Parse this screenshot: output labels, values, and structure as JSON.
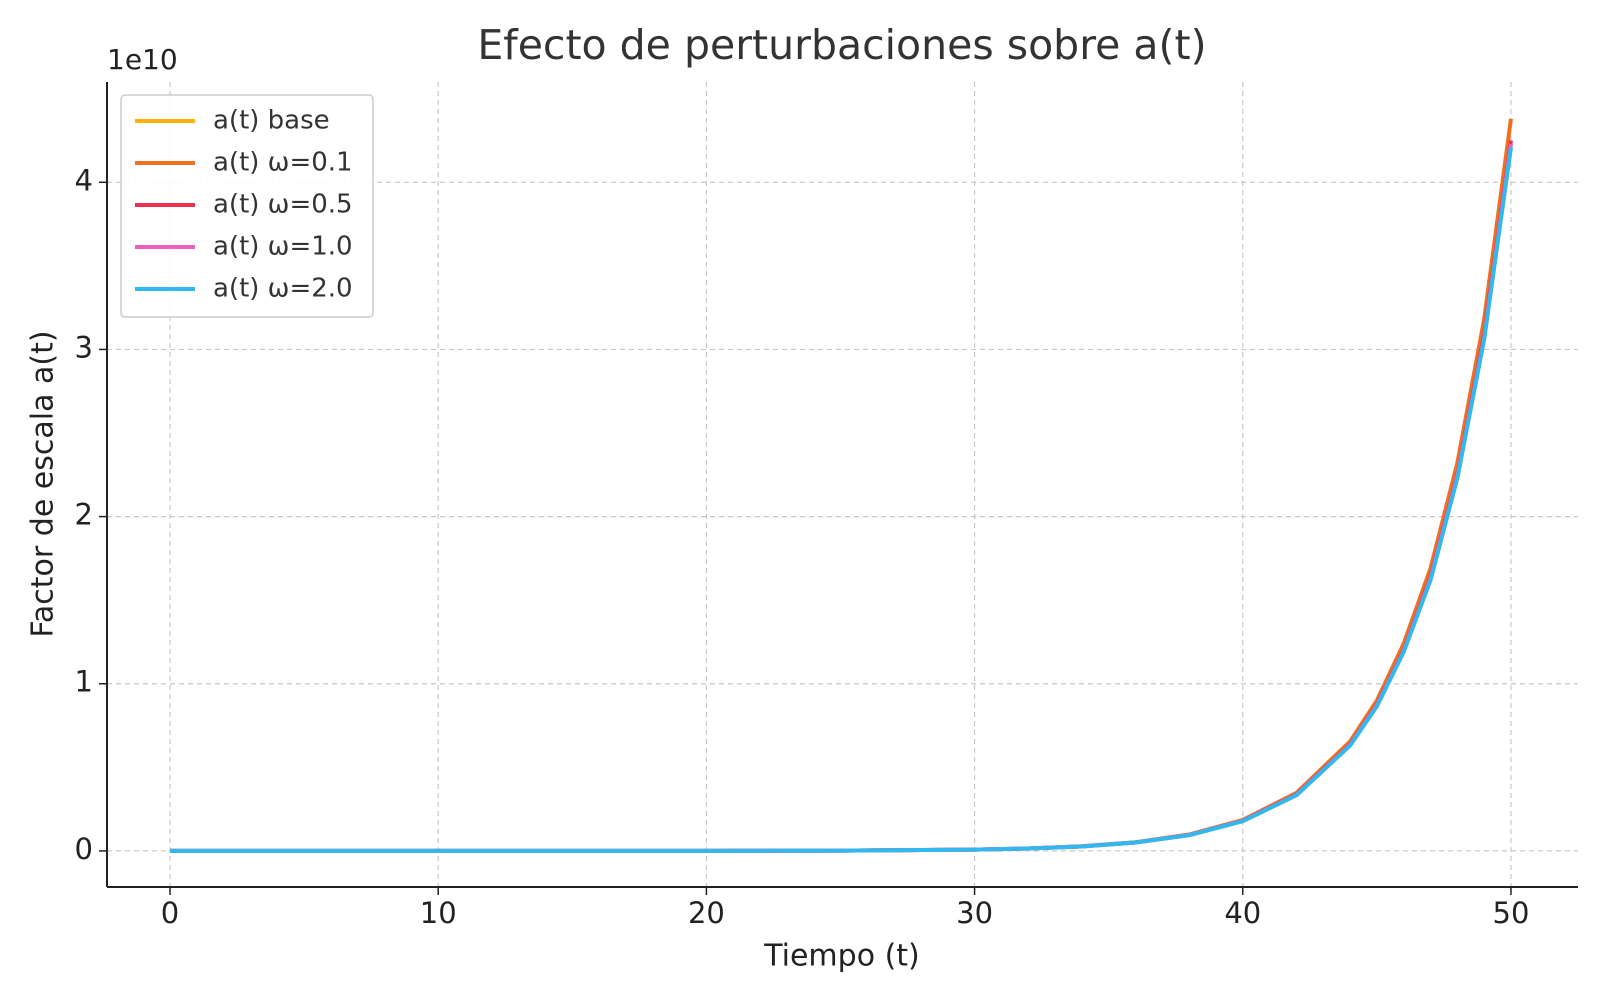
{
  "chart_data": {
    "type": "line",
    "title": "Efecto de perturbaciones sobre a(t)",
    "xlabel": "Tiempo (t)",
    "ylabel": "Factor de escala a(t)",
    "y_offset_label": "1e10",
    "x": [
      0,
      10,
      20,
      25,
      30,
      32,
      34,
      36,
      38,
      40,
      42,
      44,
      45,
      46,
      47,
      48,
      49,
      50
    ],
    "series": [
      {
        "name": "a(t) base",
        "color": "#ffb000",
        "values": [
          0,
          1e-05,
          0.0003,
          0.0016,
          0.0075,
          0.014,
          0.0265,
          0.05,
          0.094,
          0.178,
          0.333,
          0.63,
          0.865,
          1.19,
          1.62,
          2.23,
          3.06,
          4.21
        ]
      },
      {
        "name": "a(t) ω=0.1",
        "color": "#f07020",
        "values": [
          0,
          1e-05,
          0.0003,
          0.0016,
          0.0078,
          0.0146,
          0.0276,
          0.052,
          0.098,
          0.185,
          0.347,
          0.655,
          0.9,
          1.24,
          1.69,
          2.32,
          3.18,
          4.38
        ]
      },
      {
        "name": "a(t) ω=0.5",
        "color": "#ee3050",
        "values": [
          0,
          1e-05,
          0.0003,
          0.0016,
          0.0076,
          0.0142,
          0.0268,
          0.0505,
          0.0954,
          0.18,
          0.337,
          0.636,
          0.874,
          1.2,
          1.64,
          2.25,
          3.09,
          4.25
        ]
      },
      {
        "name": "a(t) ω=1.0",
        "color": "#ee60c0",
        "values": [
          0,
          1e-05,
          0.0003,
          0.0016,
          0.0075,
          0.0141,
          0.0267,
          0.0503,
          0.095,
          0.179,
          0.335,
          0.633,
          0.87,
          1.195,
          1.63,
          2.24,
          3.07,
          4.23
        ]
      },
      {
        "name": "a(t) ω=2.0",
        "color": "#30b8f0",
        "values": [
          0,
          1e-05,
          0.0003,
          0.0016,
          0.0075,
          0.014,
          0.0265,
          0.05,
          0.094,
          0.178,
          0.333,
          0.63,
          0.865,
          1.19,
          1.62,
          2.23,
          3.06,
          4.21
        ]
      }
    ],
    "xlim": [
      -2.35,
      52.5
    ],
    "ylim": [
      -0.216,
      4.6
    ],
    "xticks": [
      0,
      10,
      20,
      30,
      40,
      50
    ],
    "yticks": [
      0,
      1,
      2,
      3,
      4
    ],
    "grid": true,
    "legend": "upper-left"
  }
}
